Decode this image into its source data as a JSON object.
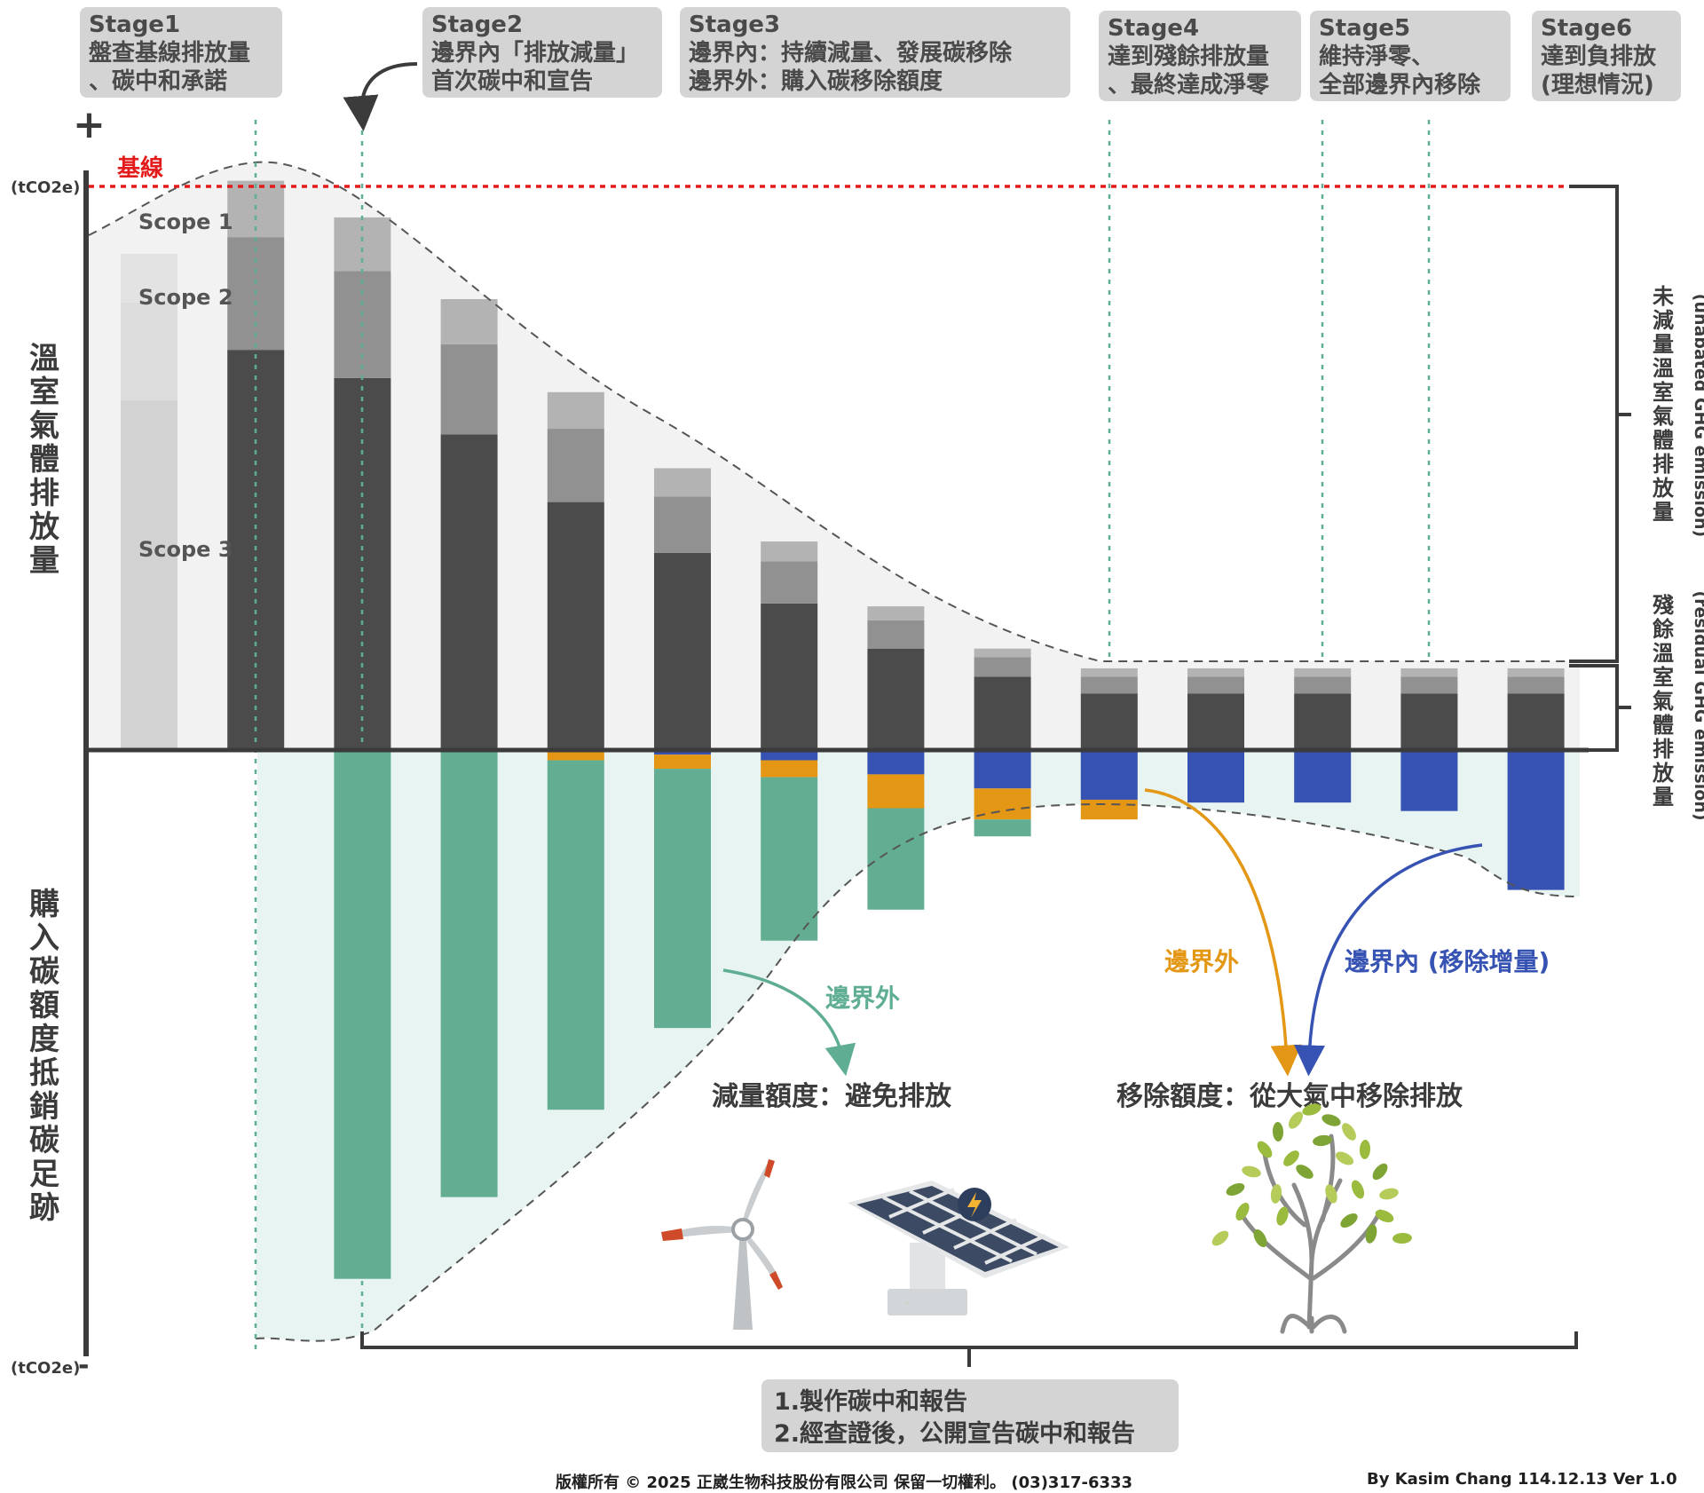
{
  "stages": [
    {
      "title": "Stage1",
      "lines": [
        "盤查基線排放量",
        "、碳中和承諾"
      ]
    },
    {
      "title": "Stage2",
      "lines": [
        "邊界內「排放減量」",
        "首次碳中和宣告"
      ]
    },
    {
      "title": "Stage3",
      "lines": [
        "邊界內：持續減量、發展碳移除",
        "邊界外：購入碳移除額度"
      ]
    },
    {
      "title": "Stage4",
      "lines": [
        "達到殘餘排放量",
        "、最終達成淨零"
      ]
    },
    {
      "title": "Stage5",
      "lines": [
        "維持淨零、",
        "全部邊界內移除"
      ]
    },
    {
      "title": "Stage6",
      "lines": [
        "達到負排放",
        "(理想情況)"
      ]
    }
  ],
  "report_note": [
    "1.製作碳中和報告",
    "2.經查證後，公開宣告碳中和報告"
  ],
  "footer": {
    "copyright": "版權所有 © 2025 正崴生物科技股份有限公司 保留一切權利。 (03)317-6333",
    "author": "By Kasim Chang 114.12.13   Ver 1.0"
  },
  "colors": {
    "scope1": "#b3b3b3",
    "scope2": "#919191",
    "scope3": "#4b4b4b",
    "baseline_bar": "#d2d2d2",
    "offset_avoid": "#63ae93",
    "offset_outside": "#e39715",
    "removal_inside": "#3652b2",
    "baseline_line": "#e31b1b",
    "guide": "#5fae93",
    "axis": "#3b3b3b"
  },
  "chart_data": {
    "type": "bar",
    "title": "",
    "plus_sign": "+",
    "minus_sign": "-",
    "y_unit_top": "(tCO2e)",
    "y_unit_bottom": "(tCO2e)",
    "ylabel_upper": "溫室氣體排放量",
    "ylabel_lower": "購入碳額度抵銷碳足跡",
    "baseline_label": "基線",
    "baseline_value": 100,
    "ylim": [
      -105,
      110
    ],
    "scope_labels": [
      "Scope 1",
      "Scope 2",
      "Scope 3"
    ],
    "right_bracket_upper": "未減量溫室氣體排放量",
    "right_bracket_upper_en": "(unabated GHG emission)",
    "right_bracket_lower": "殘餘溫室氣體排放量",
    "right_bracket_lower_en": "(residual GHG emission)",
    "annotations": {
      "avoid_arrow": "邊界外",
      "avoid_credit": "減量額度：避免排放",
      "outside_arrow": "邊界外",
      "inside_arrow": "邊界內 (移除增量)",
      "removal_credit": "移除額度：從大氣中移除排放"
    },
    "series": [
      {
        "name": "Scope 1",
        "values": [
          0,
          10,
          9.5,
          8,
          6.5,
          5,
          3.5,
          2.5,
          1.5,
          1.5,
          1.5,
          1.5,
          1.5,
          1.5
        ]
      },
      {
        "name": "Scope 2",
        "values": [
          0,
          20,
          19,
          16,
          13,
          10,
          7.5,
          5,
          3.5,
          3,
          3,
          3,
          3,
          3
        ]
      },
      {
        "name": "Scope 3",
        "values": [
          0,
          71,
          66,
          56,
          44,
          35,
          26,
          18,
          13,
          10,
          10,
          10,
          10,
          10
        ]
      },
      {
        "name": "Baseline (Stage1)",
        "values": [
          88,
          0,
          0,
          0,
          0,
          0,
          0,
          0,
          0,
          0,
          0,
          0,
          0,
          0
        ]
      },
      {
        "name": "Removal inside boundary",
        "values": [
          0,
          0,
          0,
          0,
          0,
          -0.5,
          -1.5,
          -4,
          -6.5,
          -8.5,
          -9,
          -9,
          -10.5,
          -24.5
        ]
      },
      {
        "name": "Removal credits outside boundary",
        "values": [
          0,
          0,
          0,
          0,
          -1.5,
          -2.5,
          -3,
          -6,
          -5.5,
          -3.5,
          0,
          0,
          0,
          0
        ]
      },
      {
        "name": "Avoidance credits outside boundary",
        "values": [
          0,
          0,
          -93.5,
          -79,
          -62,
          -46,
          -29,
          -18,
          -3,
          0,
          0,
          0,
          0,
          0
        ]
      }
    ]
  }
}
